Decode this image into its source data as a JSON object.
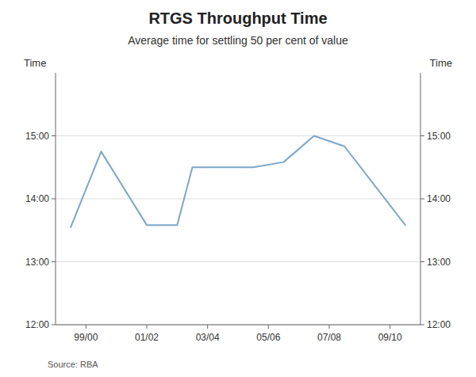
{
  "chart_data": {
    "type": "line",
    "title": "RTGS Throughput Time",
    "subtitle": "Average time for settling 50 per cent of value",
    "y_label": "Time",
    "y2_label": "Time",
    "source": "Source: RBA",
    "color": "#7BA7C9",
    "x": [
      1998.5,
      1999.5,
      2001.0,
      2002.0,
      2002.5,
      2003.5,
      2004.5,
      2005.5,
      2006.5,
      2007.5,
      2009.5
    ],
    "values": [
      813,
      885,
      815,
      815,
      870,
      870,
      870,
      875,
      900,
      890,
      815
    ],
    "xlim": [
      1998.0,
      2010.0
    ],
    "xticks": [
      {
        "value": 1999.0,
        "label": "99/00"
      },
      {
        "value": 2001.0,
        "label": "01/02"
      },
      {
        "value": 2003.0,
        "label": "03/04"
      },
      {
        "value": 2005.0,
        "label": "05/06"
      },
      {
        "value": 2007.0,
        "label": "07/08"
      },
      {
        "value": 2009.0,
        "label": "09/10"
      }
    ],
    "ylim": [
      720,
      960
    ],
    "yticks": [
      {
        "value": 720,
        "label": "12:00"
      },
      {
        "value": 780,
        "label": "13:00"
      },
      {
        "value": 840,
        "label": "14:00"
      },
      {
        "value": 900,
        "label": "15:00"
      }
    ],
    "y2lim": [
      720,
      960
    ],
    "y2ticks": [
      {
        "value": 720,
        "label": "12:00"
      },
      {
        "value": 780,
        "label": "13:00"
      },
      {
        "value": 840,
        "label": "14:00"
      },
      {
        "value": 900,
        "label": "15:00"
      }
    ],
    "grid": true
  }
}
